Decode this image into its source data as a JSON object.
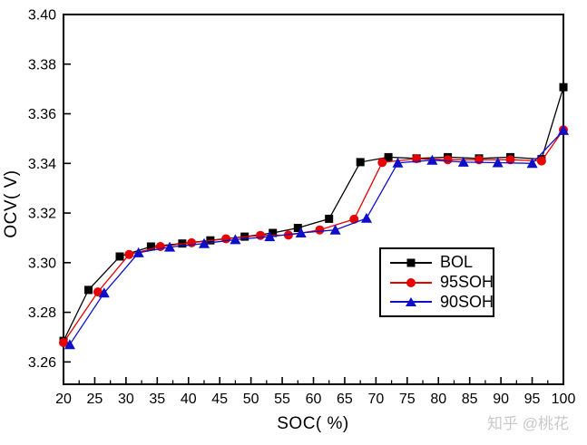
{
  "watermark": {
    "text": "知乎 @桃花"
  },
  "chart_data": {
    "type": "line",
    "title": "",
    "xlabel": "SOC( %)",
    "ylabel": "OCV( V)",
    "xlim": [
      20,
      100
    ],
    "ylim": [
      3.251,
      3.4
    ],
    "x_major_ticks": [
      20,
      25,
      30,
      35,
      40,
      45,
      50,
      55,
      60,
      65,
      70,
      75,
      80,
      85,
      90,
      95,
      100
    ],
    "x_minor_step": 2.5,
    "y_major_ticks": [
      3.26,
      3.28,
      3.3,
      3.32,
      3.34,
      3.36,
      3.38,
      3.4
    ],
    "grid": false,
    "legend_position": "inside-right-center",
    "series": [
      {
        "name": "BOL",
        "color": "#000000",
        "marker": "square",
        "points": [
          [
            20,
            3.2685
          ],
          [
            24,
            3.289
          ],
          [
            29,
            3.3025
          ],
          [
            34,
            3.3065
          ],
          [
            39,
            3.3077
          ],
          [
            43.5,
            3.309
          ],
          [
            49,
            3.3105
          ],
          [
            53.5,
            3.312
          ],
          [
            57.5,
            3.314
          ],
          [
            62.5,
            3.3177
          ],
          [
            67.5,
            3.3405
          ],
          [
            72,
            3.3425
          ],
          [
            76.5,
            3.342
          ],
          [
            81.5,
            3.3425
          ],
          [
            86.5,
            3.342
          ],
          [
            91.5,
            3.3425
          ],
          [
            96.5,
            3.3417
          ],
          [
            100,
            3.3707
          ]
        ]
      },
      {
        "name": "95SOH",
        "color": "#e60000",
        "marker": "circle",
        "points": [
          [
            20,
            3.2678
          ],
          [
            25.5,
            3.2882
          ],
          [
            30.5,
            3.3033
          ],
          [
            35.5,
            3.3065
          ],
          [
            40.5,
            3.308
          ],
          [
            46,
            3.3096
          ],
          [
            51.5,
            3.311
          ],
          [
            56,
            3.3111
          ],
          [
            61,
            3.3132
          ],
          [
            66.5,
            3.3175
          ],
          [
            71,
            3.3404
          ],
          [
            76.5,
            3.3419
          ],
          [
            81.5,
            3.3415
          ],
          [
            86.5,
            3.3415
          ],
          [
            91.5,
            3.3415
          ],
          [
            96.5,
            3.341
          ],
          [
            100,
            3.3535
          ]
        ]
      },
      {
        "name": "90SOH",
        "color": "#0f0fc8",
        "marker": "triangle",
        "points": [
          [
            21,
            3.267
          ],
          [
            26.5,
            3.2878
          ],
          [
            32,
            3.304
          ],
          [
            37,
            3.3063
          ],
          [
            42.5,
            3.3077
          ],
          [
            47.5,
            3.3093
          ],
          [
            53,
            3.3105
          ],
          [
            58,
            3.312
          ],
          [
            63.5,
            3.3132
          ],
          [
            68.5,
            3.3179
          ],
          [
            73.5,
            3.3402
          ],
          [
            79,
            3.3413
          ],
          [
            84,
            3.3405
          ],
          [
            89.5,
            3.3403
          ],
          [
            95,
            3.34
          ],
          [
            100,
            3.3533
          ]
        ]
      }
    ]
  }
}
